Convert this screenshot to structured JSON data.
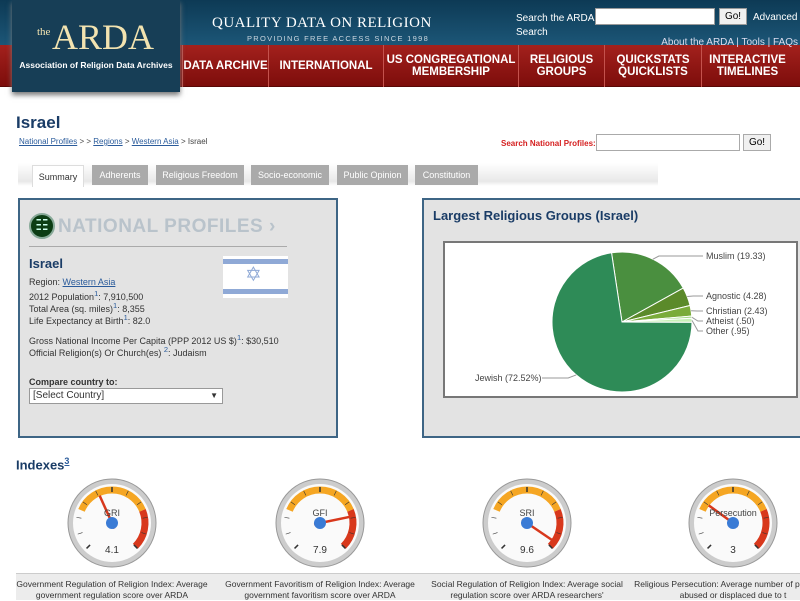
{
  "header": {
    "logo_the": "the",
    "logo_main": "ARDA",
    "logo_sub": "Association of Religion Data Archives",
    "tagline": "QUALITY DATA ON RELIGION",
    "tagline_sub": "PROVIDING FREE ACCESS SINCE 1998",
    "search_label": "Search the ARDA",
    "search_value": "",
    "search_go": "Go!",
    "advanced": "Advanced",
    "search_word": "Search",
    "toplinks": "About the ARDA | Tools | FAQs"
  },
  "nav": [
    {
      "label": "DATA ARCHIVE"
    },
    {
      "label": "INTERNATIONAL"
    },
    {
      "label": "US CONGREGATIONAL MEMBERSHIP"
    },
    {
      "label": "RELIGIOUS GROUPS"
    },
    {
      "label": "QUICKSTATS QUICKLISTS"
    },
    {
      "label": "INTERACTIVE TIMELINES"
    }
  ],
  "page": {
    "title": "Israel",
    "breadcrumb": {
      "national_profiles": "National Profiles",
      "sep1": " > > ",
      "regions": "Regions",
      "sep2": " > ",
      "western_asia": "Western Asia",
      "sep3": " > Israel"
    },
    "search_label": "Search National Profiles:",
    "search_value": "",
    "search_go": "Go!"
  },
  "tabs": [
    {
      "label": "Summary",
      "active": true
    },
    {
      "label": "Adherents"
    },
    {
      "label": "Religious Freedom"
    },
    {
      "label": "Socio-economic"
    },
    {
      "label": "Public Opinion"
    },
    {
      "label": "Constitution"
    }
  ],
  "profile": {
    "header": "NATIONAL PROFILES ›",
    "country": "Israel",
    "region_label": "Region: ",
    "region": "Western Asia",
    "population_label": "2012 Population",
    "population": ": 7,910,500",
    "area_label": "Total Area (sq. miles)",
    "area": ": 8,355",
    "life_label": "Life Expectancy at Birth",
    "life": ": 82.0",
    "gni_label": "Gross National Income Per Capita (PPP 2012 US $)",
    "gni": ": $30,510",
    "official_label": "Official Religion(s) Or Church(es) ",
    "official": ": Judaism",
    "fn1": "1",
    "fn2": "2",
    "compare_label": "Compare country to:",
    "compare_value": "[Select Country]"
  },
  "chart_title": "Largest Religious Groups (Israel)",
  "chart_data": {
    "type": "pie",
    "title": "Largest Religious Groups (Israel)",
    "slices": [
      {
        "label": "Muslim (19.33)",
        "value": 19.33,
        "color": "#4a8f3f"
      },
      {
        "label": "Agnostic (4.28)",
        "value": 4.28,
        "color": "#5b8a2a"
      },
      {
        "label": "Christian (2.43)",
        "value": 2.43,
        "color": "#7aab3a"
      },
      {
        "label": "Atheist (.50)",
        "value": 0.5,
        "color": "#a6d98a"
      },
      {
        "label": "Other (.95)",
        "value": 0.95,
        "color": "#c8f0b8"
      },
      {
        "label": "Jewish (72.52%)",
        "value": 72.52,
        "color": "#2e8b57"
      }
    ]
  },
  "indexes": {
    "title": "Indexes",
    "fn": "3",
    "gauges": [
      {
        "label": "GRI",
        "value": 4.1,
        "display": "4.1",
        "caption": "Government Regulation of Religion Index: Average government regulation score over ARDA"
      },
      {
        "label": "GFI",
        "value": 7.9,
        "display": "7.9",
        "caption": "Government Favoritism of Religion Index: Average government favoritism score over ARDA"
      },
      {
        "label": "SRI",
        "value": 9.6,
        "display": "9.6",
        "caption": "Social Regulation of Religion Index: Average social regulation score over ARDA researchers'"
      },
      {
        "label": "Persecution",
        "value": 3,
        "display": "3",
        "caption": "Religious Persecution: Average number of physically abused or displaced due to t"
      }
    ],
    "scale_min": 0,
    "scale_max": 10,
    "colors": {
      "yellow": "#f5a623",
      "red": "#d8381c",
      "needle": "#d8381c",
      "hub": "#3a7bd5"
    }
  }
}
